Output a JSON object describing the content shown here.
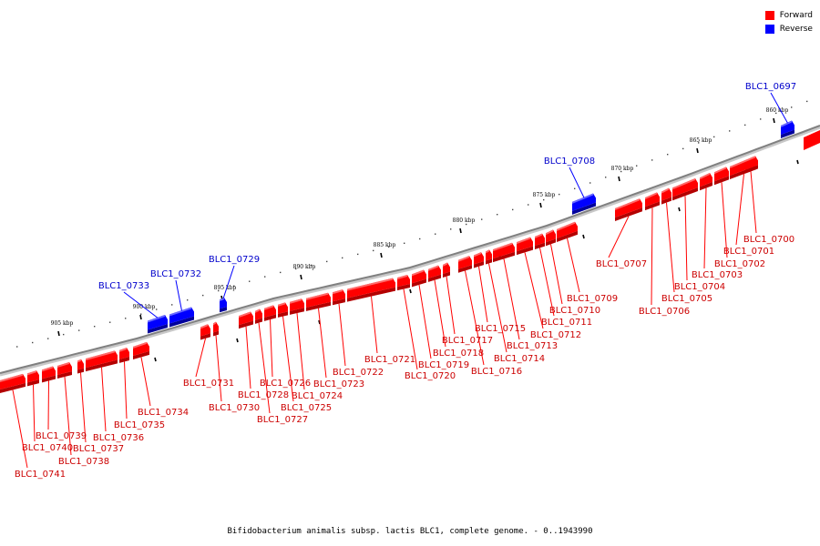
{
  "colors": {
    "forward": "#ff0000",
    "reverse": "#0000ff",
    "forward_dark": "#b30000",
    "reverse_dark": "#00009c",
    "backbone": "#808080"
  },
  "legend": [
    {
      "label": "Forward",
      "color": "#ff0000"
    },
    {
      "label": "Reverse",
      "color": "#0000ff"
    }
  ],
  "caption": "Bifidobacterium animalis subsp. lactis BLC1, complete genome. - 0..1943990",
  "kbp_ticks": [
    "860 kbp",
    "865 kbp",
    "870 kbp",
    "875 kbp",
    "880 kbp",
    "885 kbp",
    "890 kbp",
    "895 kbp",
    "900 kbp",
    "905 kbp"
  ],
  "genes": [
    {
      "label": "BLC1_0697",
      "strand": "reverse"
    },
    {
      "label": "BLC1_0700",
      "strand": "forward"
    },
    {
      "label": "BLC1_0701",
      "strand": "forward"
    },
    {
      "label": "BLC1_0702",
      "strand": "forward"
    },
    {
      "label": "BLC1_0703",
      "strand": "forward"
    },
    {
      "label": "BLC1_0704",
      "strand": "forward"
    },
    {
      "label": "BLC1_0705",
      "strand": "forward"
    },
    {
      "label": "BLC1_0706",
      "strand": "forward"
    },
    {
      "label": "BLC1_0707",
      "strand": "forward"
    },
    {
      "label": "BLC1_0708",
      "strand": "reverse"
    },
    {
      "label": "BLC1_0709",
      "strand": "forward"
    },
    {
      "label": "BLC1_0710",
      "strand": "forward"
    },
    {
      "label": "BLC1_0711",
      "strand": "forward"
    },
    {
      "label": "BLC1_0712",
      "strand": "forward"
    },
    {
      "label": "BLC1_0713",
      "strand": "forward"
    },
    {
      "label": "BLC1_0714",
      "strand": "forward"
    },
    {
      "label": "BLC1_0715",
      "strand": "forward"
    },
    {
      "label": "BLC1_0716",
      "strand": "forward"
    },
    {
      "label": "BLC1_0717",
      "strand": "forward"
    },
    {
      "label": "BLC1_0718",
      "strand": "forward"
    },
    {
      "label": "BLC1_0719",
      "strand": "forward"
    },
    {
      "label": "BLC1_0720",
      "strand": "forward"
    },
    {
      "label": "BLC1_0721",
      "strand": "forward"
    },
    {
      "label": "BLC1_0722",
      "strand": "forward"
    },
    {
      "label": "BLC1_0723",
      "strand": "forward"
    },
    {
      "label": "BLC1_0724",
      "strand": "forward"
    },
    {
      "label": "BLC1_0725",
      "strand": "forward"
    },
    {
      "label": "BLC1_0726",
      "strand": "forward"
    },
    {
      "label": "BLC1_0727",
      "strand": "forward"
    },
    {
      "label": "BLC1_0728",
      "strand": "forward"
    },
    {
      "label": "BLC1_0729",
      "strand": "reverse"
    },
    {
      "label": "BLC1_0730",
      "strand": "forward"
    },
    {
      "label": "BLC1_0731",
      "strand": "forward"
    },
    {
      "label": "BLC1_0732",
      "strand": "reverse"
    },
    {
      "label": "BLC1_0733",
      "strand": "reverse"
    },
    {
      "label": "BLC1_0734",
      "strand": "forward"
    },
    {
      "label": "BLC1_0735",
      "strand": "forward"
    },
    {
      "label": "BLC1_0736",
      "strand": "forward"
    },
    {
      "label": "BLC1_0737",
      "strand": "forward"
    },
    {
      "label": "BLC1_0738",
      "strand": "forward"
    },
    {
      "label": "BLC1_0739",
      "strand": "forward"
    },
    {
      "label": "BLC1_0740",
      "strand": "forward"
    },
    {
      "label": "BLC1_0741",
      "strand": "forward"
    }
  ]
}
